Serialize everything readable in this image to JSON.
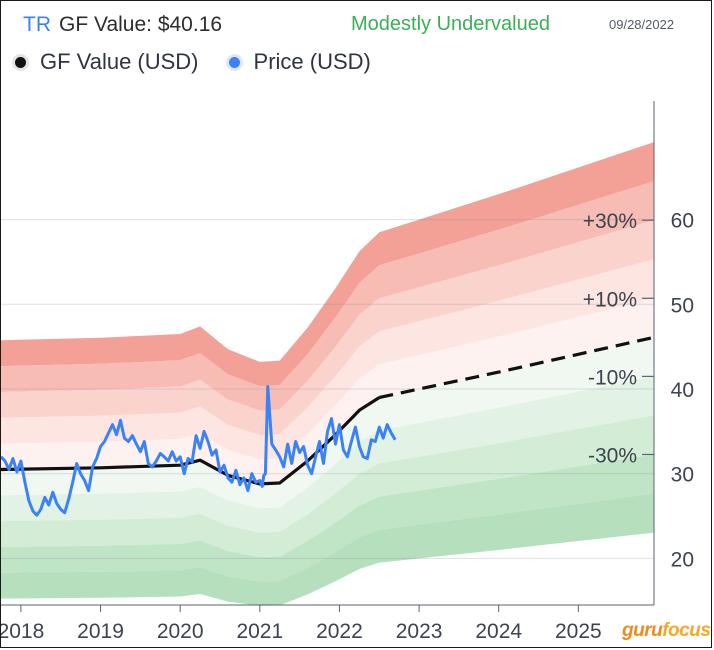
{
  "header": {
    "ticker": "TR",
    "gf_value_label": "GF Value: $40.16",
    "valuation": "Modestly Undervalued",
    "date": "09/28/2022"
  },
  "legend": [
    {
      "label": "GF Value (USD)",
      "color": "#111111"
    },
    {
      "label": "Price (USD)",
      "color": "#3b82f6"
    }
  ],
  "logo": {
    "part1": "guru",
    "part2": "focus"
  },
  "colors": {
    "gf_line": "#111111",
    "price": "#3b82f6",
    "red_bands": [
      "#f3a097",
      "#f7bdb4",
      "#fad3cc",
      "#fde5e1",
      "#fef2f0"
    ],
    "green_bands": [
      "#f1f8f1",
      "#e2f2e4",
      "#d2ecd6",
      "#c0e4c6",
      "#b6dfbd"
    ]
  },
  "chart_data": {
    "type": "line",
    "title": "TR GF Value: $40.16",
    "xlabel": "",
    "ylabel": "",
    "xlim": [
      2017.75,
      2025.95
    ],
    "ylim": [
      14.5,
      74
    ],
    "x_ticks": [
      "2018",
      "2019",
      "2020",
      "2021",
      "2022",
      "2023",
      "2024",
      "2025"
    ],
    "y_ticks": [
      "20",
      "30",
      "40",
      "50",
      "60"
    ],
    "band_labels": [
      "+30%",
      "+10%",
      "-10%",
      "-30%"
    ],
    "gf_value": {
      "x": [
        2017.75,
        2019.0,
        2020.0,
        2020.25,
        2020.6,
        2021.0,
        2021.25,
        2021.6,
        2021.95,
        2022.25,
        2022.5
      ],
      "y": [
        30.5,
        30.7,
        31.0,
        31.6,
        29.8,
        28.8,
        28.9,
        31.5,
        34.6,
        37.5,
        39.0
      ]
    },
    "gf_value_projection": {
      "x": [
        2022.5,
        2023.0,
        2024.0,
        2025.0,
        2025.95
      ],
      "y": [
        39.0,
        40.0,
        42.0,
        44.1,
        46.1
      ]
    },
    "band_multipliers": [
      1.5,
      1.4,
      1.3,
      1.2,
      1.1,
      0.9,
      0.8,
      0.7,
      0.6,
      0.5
    ],
    "price": {
      "x": [
        2017.75,
        2017.8,
        2017.85,
        2017.9,
        2017.95,
        2018.0,
        2018.05,
        2018.1,
        2018.15,
        2018.2,
        2018.25,
        2018.3,
        2018.35,
        2018.4,
        2018.45,
        2018.5,
        2018.55,
        2018.6,
        2018.65,
        2018.7,
        2018.75,
        2018.8,
        2018.85,
        2018.9,
        2018.95,
        2019.0,
        2019.05,
        2019.1,
        2019.15,
        2019.2,
        2019.25,
        2019.3,
        2019.35,
        2019.4,
        2019.45,
        2019.5,
        2019.55,
        2019.6,
        2019.65,
        2019.7,
        2019.75,
        2019.8,
        2019.85,
        2019.9,
        2019.95,
        2020.0,
        2020.05,
        2020.1,
        2020.15,
        2020.2,
        2020.25,
        2020.3,
        2020.35,
        2020.4,
        2020.45,
        2020.5,
        2020.55,
        2020.6,
        2020.65,
        2020.7,
        2020.75,
        2020.8,
        2020.85,
        2020.9,
        2020.95,
        2021.0,
        2021.03,
        2021.05,
        2021.07,
        2021.1,
        2021.15,
        2021.2,
        2021.25,
        2021.3,
        2021.35,
        2021.4,
        2021.45,
        2021.5,
        2021.55,
        2021.6,
        2021.65,
        2021.7,
        2021.75,
        2021.8,
        2021.85,
        2021.9,
        2021.95,
        2022.0,
        2022.05,
        2022.1,
        2022.15,
        2022.2,
        2022.25,
        2022.3,
        2022.35,
        2022.4,
        2022.45,
        2022.5,
        2022.55,
        2022.6,
        2022.65,
        2022.7
      ],
      "y": [
        32.0,
        31.5,
        30.5,
        31.8,
        30.2,
        31.5,
        29.0,
        26.8,
        25.6,
        25.1,
        25.8,
        27.2,
        26.3,
        27.8,
        26.5,
        25.8,
        25.4,
        27.0,
        29.0,
        31.2,
        30.0,
        29.2,
        28.0,
        30.8,
        31.8,
        33.2,
        33.8,
        34.8,
        35.8,
        34.6,
        36.3,
        34.2,
        33.8,
        34.5,
        33.5,
        32.6,
        33.8,
        31.2,
        30.8,
        31.5,
        32.4,
        32.0,
        31.5,
        32.6,
        31.5,
        32.0,
        30.0,
        31.8,
        31.4,
        34.5,
        33.0,
        35.0,
        33.8,
        32.2,
        32.8,
        30.2,
        31.0,
        29.5,
        29.0,
        30.4,
        28.7,
        29.5,
        28.0,
        30.0,
        29.0,
        29.2,
        28.5,
        29.8,
        30.0,
        40.3,
        33.5,
        32.8,
        32.0,
        30.8,
        33.5,
        31.2,
        33.8,
        32.5,
        33.2,
        31.0,
        30.0,
        32.0,
        33.8,
        31.2,
        35.0,
        36.5,
        33.5,
        35.8,
        32.8,
        32.0,
        33.8,
        35.5,
        33.2,
        32.0,
        31.8,
        34.0,
        33.8,
        35.5,
        34.2,
        35.8,
        34.8,
        34.0
      ]
    }
  }
}
